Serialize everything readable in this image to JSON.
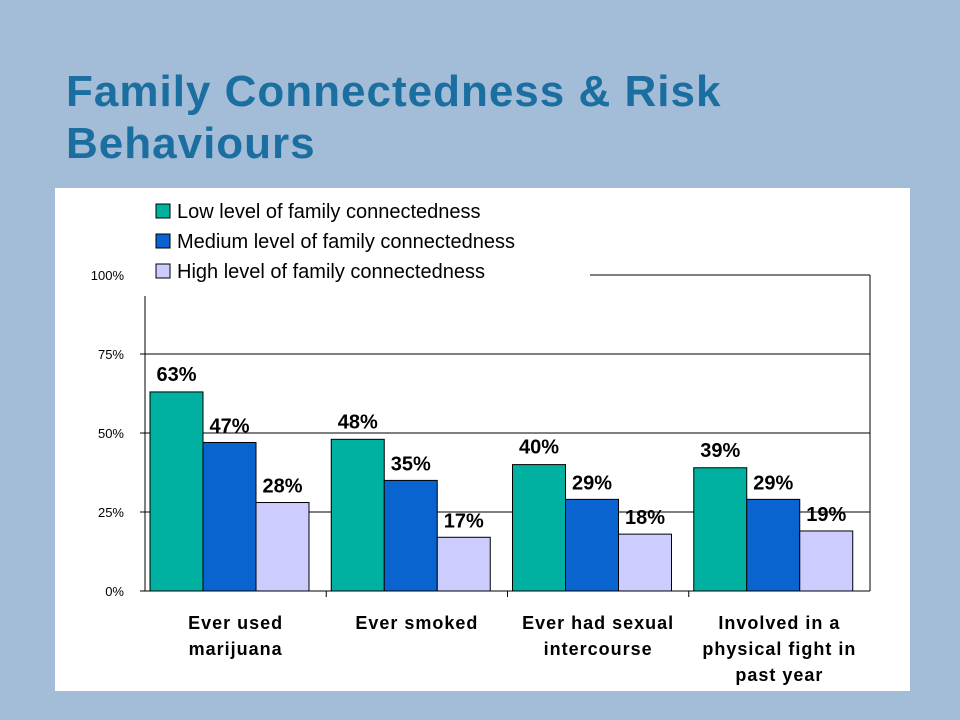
{
  "slide": {
    "title_line1": "Family Connectedness & Risk",
    "title_line2": "Behaviours"
  },
  "colors": {
    "background": "#a3bcd8",
    "title": "#1a6ea0",
    "low": "#00b0a0",
    "medium": "#0a64d0",
    "high": "#ccccff"
  },
  "chart_data": {
    "type": "bar",
    "categories": [
      [
        "Ever used",
        "marijuana"
      ],
      [
        "Ever smoked"
      ],
      [
        "Ever had sexual",
        "intercourse"
      ],
      [
        "Involved in a",
        "physical fight in",
        "past year"
      ]
    ],
    "series": [
      {
        "name": "Low level of family connectedness",
        "color": "#00b0a0",
        "values": [
          63,
          48,
          40,
          39
        ],
        "labels": [
          "63%",
          "48%",
          "40%",
          "39%"
        ]
      },
      {
        "name": "Medium level of family connectedness",
        "color": "#0a64d0",
        "values": [
          47,
          35,
          29,
          29
        ],
        "labels": [
          "47%",
          "35%",
          "29%",
          "29%"
        ]
      },
      {
        "name": "High level of family connectedness",
        "color": "#ccccff",
        "values": [
          28,
          17,
          18,
          19
        ],
        "labels": [
          "28%",
          "17%",
          "18%",
          "19%"
        ]
      }
    ],
    "yticks": [
      "0%",
      "25%",
      "50%",
      "75%",
      "100%"
    ],
    "ylim": [
      0,
      100
    ],
    "grid": true,
    "legend_position": "top-left"
  }
}
